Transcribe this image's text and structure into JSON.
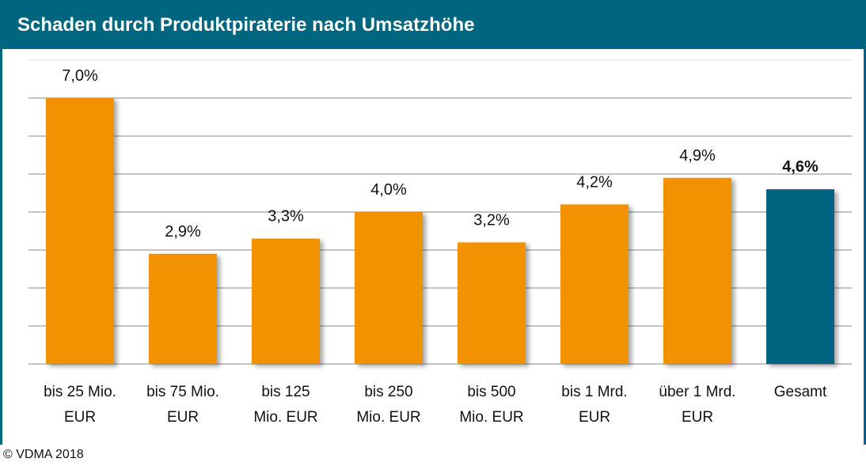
{
  "chart_data": {
    "type": "bar",
    "title": "Schaden durch Produktpiraterie nach Umsatzhöhe",
    "source": "© VDMA 2018",
    "categories": [
      "bis 25 Mio.\nEUR",
      "bis 75 Mio.\nEUR",
      "bis 125\nMio. EUR",
      "bis 250\nMio. EUR",
      "bis 500\nMio. EUR",
      "bis 1 Mrd.\nEUR",
      "über 1 Mrd.\nEUR",
      "Gesamt"
    ],
    "values": [
      7.0,
      2.9,
      3.3,
      4.0,
      3.2,
      4.2,
      4.9,
      4.6
    ],
    "value_labels": [
      "7,0%",
      "2,9%",
      "3,3%",
      "4,0%",
      "3,2%",
      "4,2%",
      "4,9%",
      "4,6%"
    ],
    "colors": [
      "#f39200",
      "#f39200",
      "#f39200",
      "#f39200",
      "#f39200",
      "#f39200",
      "#f39200",
      "#00657f"
    ],
    "bold_value_labels": [
      false,
      false,
      false,
      false,
      false,
      false,
      false,
      true
    ],
    "ylim": [
      0,
      8
    ],
    "yticks": [
      0,
      1,
      2,
      3,
      4,
      5,
      6,
      7,
      8
    ],
    "grid": true
  }
}
